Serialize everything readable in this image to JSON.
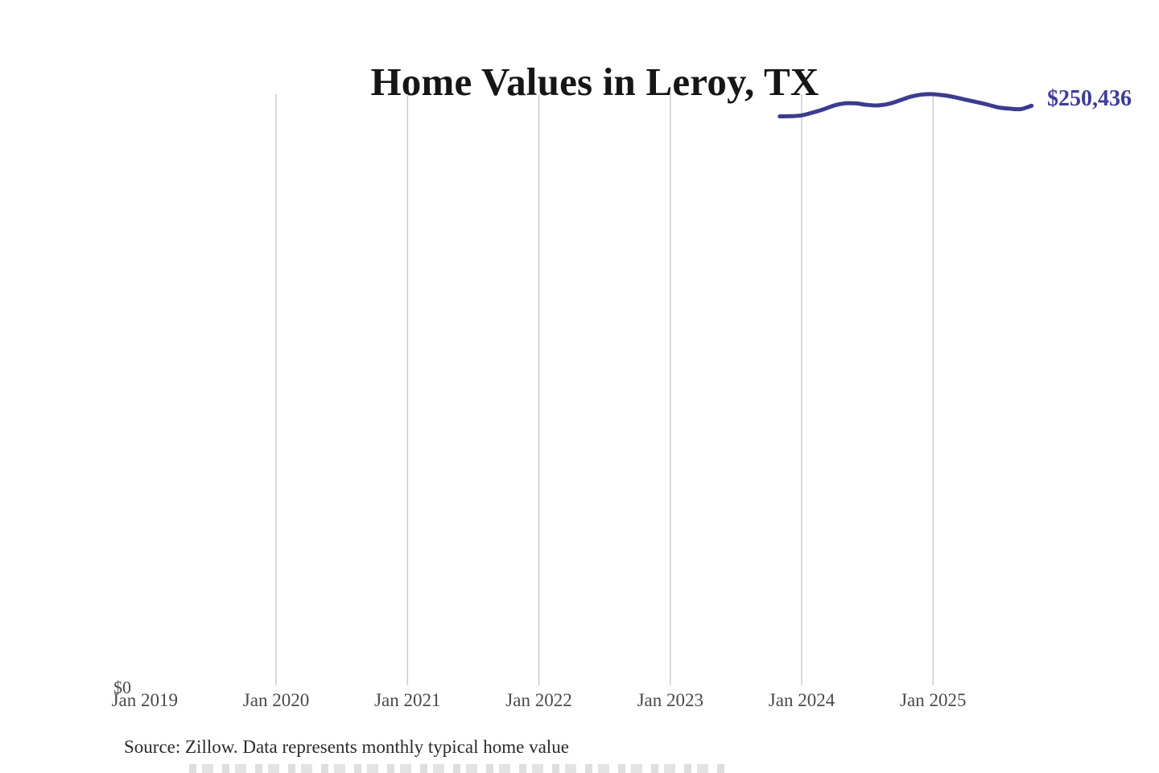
{
  "header": {
    "title": "Home Values in Leroy, TX"
  },
  "footer": {
    "source_note": "Source: Zillow. Data represents monthly typical home value"
  },
  "axis": {
    "zero_label": "$0"
  },
  "annotation": {
    "end_value_label": "$250,436"
  },
  "colors": {
    "line": "#3b3b8f",
    "end_label": "#3d3d99",
    "gridline": "#cccccc",
    "axis_text": "#4a4a4a",
    "title_text": "#161616",
    "source_text": "#2b2b2b",
    "background": "#ffffff"
  },
  "chart_data": {
    "type": "line",
    "title": "Home Values in Leroy, TX",
    "xlabel": "",
    "ylabel": "",
    "ylim": [
      0,
      255400
    ],
    "grid": "vertical yearly gridlines only; no horizontal gridlines; no axis line",
    "legend": "none",
    "x_tick_labels": [
      "Jan 2019",
      "Jan 2020",
      "Jan 2021",
      "Jan 2022",
      "Jan 2023",
      "Jan 2024",
      "Jan 2025"
    ],
    "x_tick_month_offsets": [
      0,
      12,
      24,
      36,
      48,
      60,
      72
    ],
    "gridline_month_offsets": [
      12,
      24,
      36,
      48,
      60,
      72
    ],
    "y_axis_labels": [
      "$0"
    ],
    "end_label": "$250,436",
    "series": [
      {
        "name": "Monthly typical home value",
        "points": [
          {
            "date": "Nov 2023",
            "value": 245900
          },
          {
            "date": "Dec 2023",
            "value": 245950
          },
          {
            "date": "Jan 2024",
            "value": 246300
          },
          {
            "date": "Feb 2024",
            "value": 247500
          },
          {
            "date": "Mar 2024",
            "value": 248900
          },
          {
            "date": "Apr 2024",
            "value": 250600
          },
          {
            "date": "May 2024",
            "value": 251500
          },
          {
            "date": "Jun 2024",
            "value": 251450
          },
          {
            "date": "Jul 2024",
            "value": 250800
          },
          {
            "date": "Aug 2024",
            "value": 250600
          },
          {
            "date": "Sep 2024",
            "value": 251300
          },
          {
            "date": "Oct 2024",
            "value": 252800
          },
          {
            "date": "Nov 2024",
            "value": 254400
          },
          {
            "date": "Dec 2024",
            "value": 255250
          },
          {
            "date": "Jan 2025",
            "value": 255400
          },
          {
            "date": "Feb 2025",
            "value": 254900
          },
          {
            "date": "Mar 2025",
            "value": 254100
          },
          {
            "date": "Apr 2025",
            "value": 253000
          },
          {
            "date": "May 2025",
            "value": 252000
          },
          {
            "date": "Jun 2025",
            "value": 250900
          },
          {
            "date": "Jul 2025",
            "value": 249700
          },
          {
            "date": "Aug 2025",
            "value": 249200
          },
          {
            "date": "Sep 2025",
            "value": 249000
          },
          {
            "date": "Oct 2025",
            "value": 250436
          }
        ]
      }
    ]
  }
}
